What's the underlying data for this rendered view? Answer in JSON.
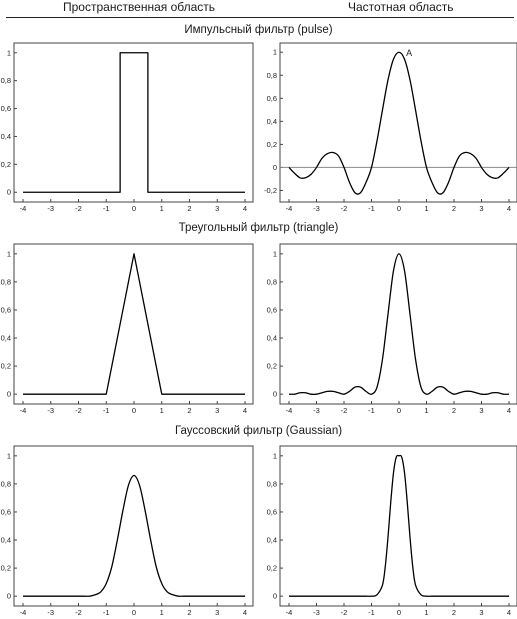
{
  "headers": {
    "left": "Пространственная область",
    "right": "Частотная область"
  },
  "rows": [
    {
      "title": "Импульсный фильтр (pulse)"
    },
    {
      "title": "Треугольный фильтр (triangle)"
    },
    {
      "title": "Гауссовский фильтр (Gaussian)"
    }
  ],
  "colors": {
    "line": "#000000",
    "zero_line": "#888888",
    "frame": "#444444"
  },
  "chart_data": [
    {
      "type": "line",
      "row": "Импульсный фильтр (pulse)",
      "column": "Пространственная область",
      "xlim": [
        -4,
        4
      ],
      "ylim": [
        -0.07,
        1.07
      ],
      "xticks": [
        -4,
        -3,
        -2,
        -1,
        0,
        1,
        2,
        3,
        4
      ],
      "yticks": [
        0,
        0.2,
        0.4,
        0.6,
        0.8,
        1
      ],
      "ytick_labels": [
        "0",
        "0,2",
        "0,4",
        "0,6",
        "0,8",
        "1"
      ],
      "x": [
        -4,
        -0.5,
        -0.5,
        0.5,
        0.5,
        4
      ],
      "y": [
        0,
        0,
        1,
        1,
        0,
        0
      ]
    },
    {
      "type": "line",
      "row": "Импульсный фильтр (pulse)",
      "column": "Частотная область",
      "xlim": [
        -4,
        4
      ],
      "ylim": [
        -0.3,
        1.08
      ],
      "xticks": [
        -4,
        -3,
        -2,
        -1,
        0,
        1,
        2,
        3,
        4
      ],
      "yticks": [
        -0.2,
        0,
        0.2,
        0.4,
        0.6,
        0.8,
        1
      ],
      "ytick_labels": [
        "-0,2",
        "0",
        "0,2",
        "0,4",
        "0,6",
        "0,8",
        "1"
      ],
      "zero_line": true,
      "annotation": {
        "text": "A",
        "x": 0.15,
        "y": 1
      },
      "x": [
        -4.0,
        -3.8,
        -3.6,
        -3.4,
        -3.2,
        -3.0,
        -2.8,
        -2.6,
        -2.4,
        -2.2,
        -2.0,
        -1.8,
        -1.6,
        -1.4,
        -1.2,
        -1.0,
        -0.8,
        -0.6,
        -0.4,
        -0.2,
        0.0,
        0.2,
        0.4,
        0.6,
        0.8,
        1.0,
        1.2,
        1.4,
        1.6,
        1.8,
        2.0,
        2.2,
        2.4,
        2.6,
        2.8,
        3.0,
        3.2,
        3.4,
        3.6,
        3.8,
        4.0
      ],
      "y": [
        0.0,
        -0.05,
        -0.09,
        -0.09,
        -0.06,
        0.0,
        0.08,
        0.12,
        0.13,
        0.1,
        0.0,
        -0.13,
        -0.22,
        -0.22,
        -0.13,
        0.0,
        0.23,
        0.5,
        0.76,
        0.94,
        1.0,
        0.94,
        0.76,
        0.5,
        0.23,
        0.0,
        -0.13,
        -0.22,
        -0.22,
        -0.13,
        0.0,
        0.1,
        0.13,
        0.12,
        0.08,
        0.0,
        -0.06,
        -0.09,
        -0.09,
        -0.05,
        0.0
      ]
    },
    {
      "type": "line",
      "row": "Треугольный фильтр (triangle)",
      "column": "Пространственная область",
      "xlim": [
        -4,
        4
      ],
      "ylim": [
        -0.07,
        1.07
      ],
      "xticks": [
        -4,
        -3,
        -2,
        -1,
        0,
        1,
        2,
        3,
        4
      ],
      "yticks": [
        0,
        0.2,
        0.4,
        0.6,
        0.8,
        1
      ],
      "ytick_labels": [
        "0",
        "0,2",
        "0,4",
        "0,6",
        "0,8",
        "1"
      ],
      "x": [
        -4,
        -1,
        0,
        1,
        4
      ],
      "y": [
        0,
        0,
        1,
        0,
        0
      ]
    },
    {
      "type": "line",
      "row": "Треугольный фильтр (triangle)",
      "column": "Частотная область",
      "xlim": [
        -4,
        4
      ],
      "ylim": [
        -0.07,
        1.07
      ],
      "xticks": [
        -4,
        -3,
        -2,
        -1,
        0,
        1,
        2,
        3,
        4
      ],
      "yticks": [
        0,
        0.2,
        0.4,
        0.6,
        0.8,
        1
      ],
      "ytick_labels": [
        "0",
        "0,2",
        "0,4",
        "0,6",
        "0,8",
        "1"
      ],
      "x": [
        -4.0,
        -3.8,
        -3.6,
        -3.4,
        -3.2,
        -3.0,
        -2.8,
        -2.6,
        -2.4,
        -2.2,
        -2.0,
        -1.8,
        -1.6,
        -1.4,
        -1.2,
        -1.0,
        -0.8,
        -0.6,
        -0.4,
        -0.2,
        0.0,
        0.2,
        0.4,
        0.6,
        0.8,
        1.0,
        1.2,
        1.4,
        1.6,
        1.8,
        2.0,
        2.2,
        2.4,
        2.6,
        2.8,
        3.0,
        3.2,
        3.4,
        3.6,
        3.8,
        4.0
      ],
      "y": [
        0.0,
        0.0,
        0.01,
        0.01,
        0.0,
        0.0,
        0.01,
        0.02,
        0.02,
        0.01,
        0.0,
        0.02,
        0.05,
        0.05,
        0.02,
        0.0,
        0.05,
        0.25,
        0.57,
        0.88,
        1.0,
        0.88,
        0.57,
        0.25,
        0.05,
        0.0,
        0.02,
        0.05,
        0.05,
        0.02,
        0.0,
        0.01,
        0.02,
        0.02,
        0.01,
        0.0,
        0.0,
        0.01,
        0.01,
        0.0,
        0.0
      ]
    },
    {
      "type": "line",
      "row": "Гауссовский фильтр (Gaussian)",
      "column": "Пространственная область",
      "xlim": [
        -4,
        4
      ],
      "ylim": [
        -0.07,
        1.07
      ],
      "xticks": [
        -4,
        -3,
        -2,
        -1,
        0,
        1,
        2,
        3,
        4
      ],
      "yticks": [
        0,
        0.2,
        0.4,
        0.6,
        0.8,
        1
      ],
      "ytick_labels": [
        "0",
        "0,2",
        "0,4",
        "0,6",
        "0,8",
        "1"
      ],
      "x": [
        -4.0,
        -3.8,
        -3.6,
        -3.4,
        -3.2,
        -3.0,
        -2.8,
        -2.6,
        -2.4,
        -2.2,
        -2.0,
        -1.8,
        -1.6,
        -1.4,
        -1.2,
        -1.0,
        -0.8,
        -0.6,
        -0.4,
        -0.2,
        0.0,
        0.2,
        0.4,
        0.6,
        0.8,
        1.0,
        1.2,
        1.4,
        1.6,
        1.8,
        2.0,
        2.2,
        2.4,
        2.6,
        2.8,
        3.0,
        3.2,
        3.4,
        3.6,
        3.8,
        4.0
      ],
      "y": [
        0.0,
        0.0,
        0.0,
        0.0,
        0.0,
        0.0,
        0.0,
        0.0,
        0.0,
        0.0,
        0.0,
        0.0,
        0.0,
        0.01,
        0.03,
        0.09,
        0.21,
        0.4,
        0.61,
        0.79,
        0.86,
        0.79,
        0.61,
        0.4,
        0.21,
        0.09,
        0.03,
        0.01,
        0.0,
        0.0,
        0.0,
        0.0,
        0.0,
        0.0,
        0.0,
        0.0,
        0.0,
        0.0,
        0.0,
        0.0,
        0.0
      ]
    },
    {
      "type": "line",
      "row": "Гауссовский фильтр (Gaussian)",
      "column": "Частотная область",
      "xlim": [
        -4,
        4
      ],
      "ylim": [
        -0.07,
        1.07
      ],
      "xticks": [
        -4,
        -3,
        -2,
        -1,
        0,
        1,
        2,
        3,
        4
      ],
      "yticks": [
        0,
        0.2,
        0.4,
        0.6,
        0.8,
        1
      ],
      "ytick_labels": [
        "0",
        "0,2",
        "0,4",
        "0,6",
        "0,8",
        "1"
      ],
      "x": [
        -4.0,
        -3.8,
        -3.6,
        -3.4,
        -3.2,
        -3.0,
        -2.8,
        -2.6,
        -2.4,
        -2.2,
        -2.0,
        -1.8,
        -1.6,
        -1.4,
        -1.2,
        -1.0,
        -0.8,
        -0.6,
        -0.5,
        -0.4,
        -0.3,
        -0.2,
        -0.1,
        0.0,
        0.1,
        0.2,
        0.3,
        0.4,
        0.5,
        0.6,
        0.8,
        1.0,
        1.2,
        1.4,
        1.6,
        1.8,
        2.0,
        2.2,
        2.4,
        2.6,
        2.8,
        3.0,
        3.2,
        3.4,
        3.6,
        3.8,
        4.0
      ],
      "y": [
        0.0,
        0.0,
        0.0,
        0.0,
        0.0,
        0.0,
        0.0,
        0.0,
        0.0,
        0.0,
        0.0,
        0.0,
        0.0,
        0.0,
        0.0,
        0.0,
        0.01,
        0.08,
        0.21,
        0.42,
        0.67,
        0.88,
        0.99,
        1.0,
        0.99,
        0.88,
        0.67,
        0.42,
        0.21,
        0.08,
        0.01,
        0.0,
        0.0,
        0.0,
        0.0,
        0.0,
        0.0,
        0.0,
        0.0,
        0.0,
        0.0,
        0.0,
        0.0,
        0.0,
        0.0,
        0.0,
        0.0
      ]
    }
  ]
}
